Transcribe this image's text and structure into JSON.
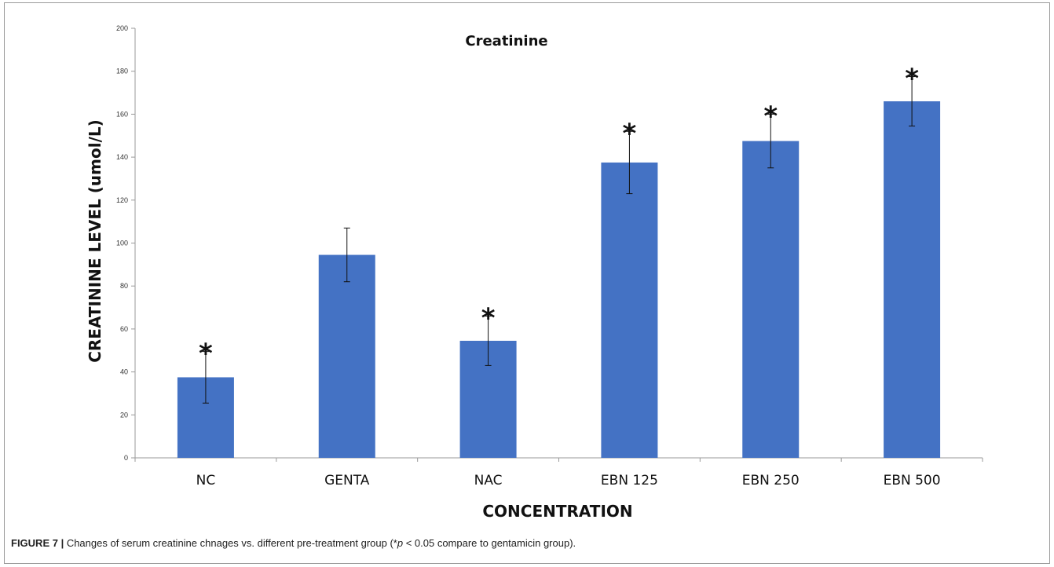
{
  "caption": {
    "label": "FIGURE 7 |",
    "text_before": " Changes of serum creatinine chnages vs. different pre-treatment group (*",
    "p_symbol": "p",
    "text_after": " < 0.05 compare to gentamicin group)."
  },
  "chart_data": {
    "type": "bar",
    "title": "Creatinine",
    "xlabel": "CONCENTRATION",
    "ylabel": "CREATININE LEVEL (umol/L)",
    "ylim": [
      0,
      200
    ],
    "yticks": [
      0,
      20,
      40,
      60,
      80,
      100,
      120,
      140,
      160,
      180,
      200
    ],
    "categories": [
      "NC",
      "GENTA",
      "NAC",
      "EBN 125",
      "EBN 250",
      "EBN 500"
    ],
    "values": [
      37.5,
      94.5,
      54.5,
      137.5,
      147.5,
      166
    ],
    "error": [
      12,
      12.5,
      11.5,
      14.5,
      12.5,
      11.5
    ],
    "significant": [
      true,
      false,
      true,
      true,
      true,
      true
    ],
    "significance_marker": "*",
    "bar_color": "#4472C4",
    "grid": false,
    "legend": "none"
  }
}
